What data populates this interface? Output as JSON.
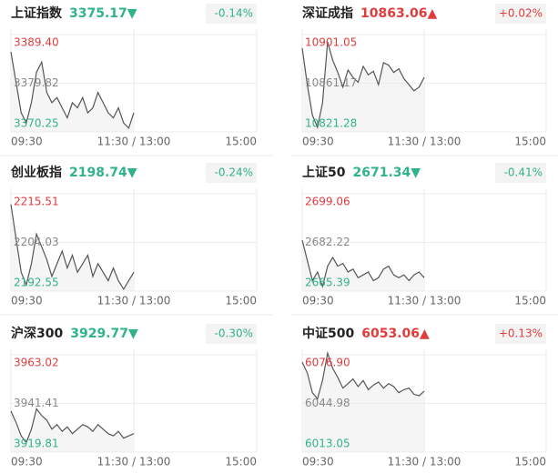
{
  "chart_data": [
    {
      "type": "line",
      "title": "上证指数",
      "price": "3375.17▼",
      "change": "-0.14%",
      "color": "#2fb38a",
      "xlim": [
        0,
        240
      ],
      "xticks": [
        {
          "value": 0,
          "label": "09:30"
        },
        {
          "value": 120,
          "label": "11:30 / 13:00"
        },
        {
          "value": 240,
          "label": "15:00"
        }
      ],
      "ylim": [
        3370.25,
        3389.4
      ],
      "yticks": [
        {
          "value": 3389.4,
          "label": "3389.40"
        },
        3379.82,
        3370.25
      ],
      "x": [
        0,
        5,
        10,
        15,
        20,
        25,
        30,
        35,
        40,
        45,
        50,
        55,
        60,
        65,
        70,
        75,
        80,
        85,
        90,
        95,
        100,
        105,
        110,
        115,
        120
      ],
      "values": [
        3386,
        3380,
        3374,
        3372,
        3376,
        3382,
        3384,
        3378,
        3376,
        3377,
        3375,
        3373,
        3376,
        3375,
        3377,
        3374,
        3375,
        3378,
        3376,
        3374,
        3373,
        3375,
        3372,
        3371,
        3374
      ]
    },
    {
      "type": "line",
      "title": "深证成指",
      "price": "10863.06▲",
      "change": "+0.02%",
      "color": "#e23b3b",
      "xlim": [
        0,
        240
      ],
      "xticks": [
        {
          "value": 0,
          "label": "09:30"
        },
        {
          "value": 120,
          "label": "11:30 / 13:00"
        },
        {
          "value": 240,
          "label": "15:00"
        }
      ],
      "ylim": [
        10821.28,
        10901.05
      ],
      "yticks": [
        10901.05,
        10861.17,
        10821.28
      ],
      "x": [
        0,
        5,
        10,
        15,
        20,
        25,
        30,
        35,
        40,
        45,
        50,
        55,
        60,
        65,
        70,
        75,
        80,
        85,
        90,
        95,
        100,
        105,
        110,
        115,
        120
      ],
      "values": [
        10890,
        10860,
        10835,
        10825,
        10845,
        10895,
        10880,
        10870,
        10858,
        10872,
        10866,
        10862,
        10875,
        10868,
        10871,
        10860,
        10878,
        10876,
        10870,
        10873,
        10865,
        10860,
        10855,
        10858,
        10866
      ]
    },
    {
      "type": "line",
      "title": "创业板指",
      "price": "2198.74▼",
      "change": "-0.24%",
      "color": "#2fb38a",
      "xlim": [
        0,
        240
      ],
      "xticks": [
        {
          "value": 0,
          "label": "09:30"
        },
        {
          "value": 120,
          "label": "11:30 / 13:00"
        },
        {
          "value": 240,
          "label": "15:00"
        }
      ],
      "ylim": [
        2192.55,
        2215.51
      ],
      "yticks": [
        2215.51,
        2204.03,
        2192.55
      ],
      "x": [
        0,
        5,
        10,
        15,
        20,
        25,
        30,
        35,
        40,
        45,
        50,
        55,
        60,
        65,
        70,
        75,
        80,
        85,
        90,
        95,
        100,
        105,
        110,
        115,
        120
      ],
      "values": [
        2213,
        2205,
        2197,
        2194,
        2199,
        2206,
        2203,
        2200,
        2196,
        2199,
        2202,
        2198,
        2201,
        2197,
        2199,
        2201,
        2196,
        2199,
        2197,
        2195,
        2198,
        2195,
        2193,
        2195,
        2197
      ]
    },
    {
      "type": "line",
      "title": "上证50",
      "price": "2671.34▼",
      "change": "-0.41%",
      "color": "#2fb38a",
      "xlim": [
        0,
        240
      ],
      "xticks": [
        {
          "value": 0,
          "label": "09:30"
        },
        {
          "value": 120,
          "label": "11:30 / 13:00"
        },
        {
          "value": 240,
          "label": "15:00"
        }
      ],
      "ylim": [
        2665.39,
        2699.06
      ],
      "yticks": [
        2699.06,
        2682.22,
        2665.39
      ],
      "x": [
        0,
        5,
        10,
        15,
        20,
        25,
        30,
        35,
        40,
        45,
        50,
        55,
        60,
        65,
        70,
        75,
        80,
        85,
        90,
        95,
        100,
        105,
        110,
        115,
        120
      ],
      "values": [
        2683,
        2676,
        2669,
        2672,
        2667,
        2674,
        2677,
        2674,
        2675,
        2672,
        2673,
        2670,
        2671,
        2672,
        2669,
        2670,
        2673,
        2674,
        2671,
        2670,
        2671,
        2669,
        2671,
        2672,
        2670
      ]
    },
    {
      "type": "line",
      "title": "沪深300",
      "price": "3929.77▼",
      "change": "-0.30%",
      "color": "#2fb38a",
      "xlim": [
        0,
        240
      ],
      "xticks": [
        {
          "value": 0,
          "label": "09:30"
        },
        {
          "value": 120,
          "label": "11:30 / 13:00"
        },
        {
          "value": 240,
          "label": "15:00"
        }
      ],
      "ylim": [
        3919.81,
        3963.02
      ],
      "yticks": [
        3963.02,
        3941.41,
        3919.81
      ],
      "x": [
        0,
        5,
        10,
        15,
        20,
        25,
        30,
        35,
        40,
        45,
        50,
        55,
        60,
        65,
        70,
        75,
        80,
        85,
        90,
        95,
        100,
        105,
        110,
        115,
        120
      ],
      "values": [
        3938,
        3933,
        3927,
        3924,
        3930,
        3939,
        3936,
        3934,
        3930,
        3932,
        3929,
        3931,
        3928,
        3930,
        3932,
        3931,
        3929,
        3932,
        3930,
        3928,
        3927,
        3929,
        3926,
        3927,
        3928
      ]
    },
    {
      "type": "line",
      "title": "中证500",
      "price": "6053.06▲",
      "change": "+0.13%",
      "color": "#e23b3b",
      "xlim": [
        0,
        240
      ],
      "xticks": [
        {
          "value": 0,
          "label": "09:30"
        },
        {
          "value": 120,
          "label": "11:30 / 13:00"
        },
        {
          "value": 240,
          "label": "15:00"
        }
      ],
      "ylim": [
        6013.05,
        6076.9
      ],
      "yticks": [
        {
          "value": 6076.9,
          "label": "6076.90"
        },
        6044.98,
        6013.05
      ],
      "x": [
        0,
        5,
        10,
        15,
        20,
        25,
        30,
        35,
        40,
        45,
        50,
        55,
        60,
        65,
        70,
        75,
        80,
        85,
        90,
        95,
        100,
        105,
        110,
        115,
        120
      ],
      "values": [
        6072,
        6065,
        6052,
        6048,
        6060,
        6078,
        6068,
        6062,
        6055,
        6058,
        6061,
        6056,
        6060,
        6054,
        6057,
        6059,
        6055,
        6058,
        6056,
        6052,
        6054,
        6055,
        6051,
        6050,
        6053
      ]
    }
  ]
}
